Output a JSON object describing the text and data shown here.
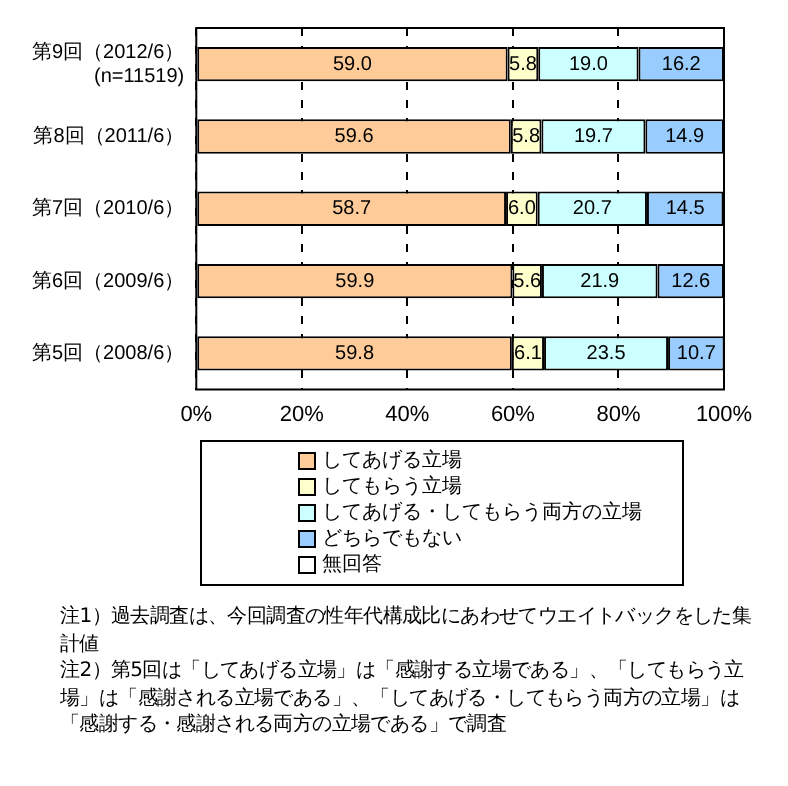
{
  "chart_data": {
    "type": "bar",
    "orientation": "horizontal",
    "stacked": true,
    "grid": "x",
    "legend": "bottom",
    "categories": [
      "第9回（2012/6）\n(n=11519)",
      "第8回（2011/6）",
      "第7回（2010/6）",
      "第6回（2009/6）",
      "第5回（2008/6）"
    ],
    "series": [
      {
        "name": "してあげる立場",
        "color": "#ffcc99",
        "values": [
          59.0,
          59.6,
          58.7,
          59.9,
          59.8
        ],
        "value_labels": [
          "59.0",
          "59.6",
          "58.7",
          "59.9",
          "59.8"
        ]
      },
      {
        "name": "してもらう立場",
        "color": "#ffffcc",
        "values": [
          5.8,
          5.8,
          6.0,
          5.6,
          6.1
        ],
        "value_labels": [
          "5.8",
          "5.8",
          "6.0",
          "5.6",
          "6.1"
        ]
      },
      {
        "name": "してあげる・してもらう両方の立場",
        "color": "#ccffff",
        "values": [
          19.0,
          19.7,
          20.7,
          21.9,
          23.5
        ],
        "value_labels": [
          "19.0",
          "19.7",
          "20.7",
          "21.9",
          "23.5"
        ]
      },
      {
        "name": "どちらでもない",
        "color": "#99ccff",
        "values": [
          16.2,
          14.9,
          14.5,
          12.6,
          10.7
        ],
        "value_labels": [
          "16.2",
          "14.9",
          "14.5",
          "12.6",
          "10.7"
        ]
      },
      {
        "name": "無回答",
        "color": "#ffffff",
        "values": [
          null,
          null,
          null,
          null,
          null
        ]
      }
    ],
    "xlim": [
      0,
      100
    ],
    "xticks": [
      {
        "value": 0,
        "label": "0%"
      },
      {
        "value": 20,
        "label": "20%"
      },
      {
        "value": 40,
        "label": "40%"
      },
      {
        "value": 60,
        "label": "60%"
      },
      {
        "value": 80,
        "label": "80%"
      },
      {
        "value": 100,
        "label": "100%"
      }
    ],
    "annotations": [
      "注1）過去調査は、今回調査の性年代構成比にあわせてウエイトバックをした集計値",
      "注2）第5回は「してあげる立場」は「感謝する立場である」、「してもらう立場」は「感謝される立場である」、「してあげる・してもらう両方の立場」は「感謝する・感謝される両方の立場である」で調査"
    ]
  }
}
